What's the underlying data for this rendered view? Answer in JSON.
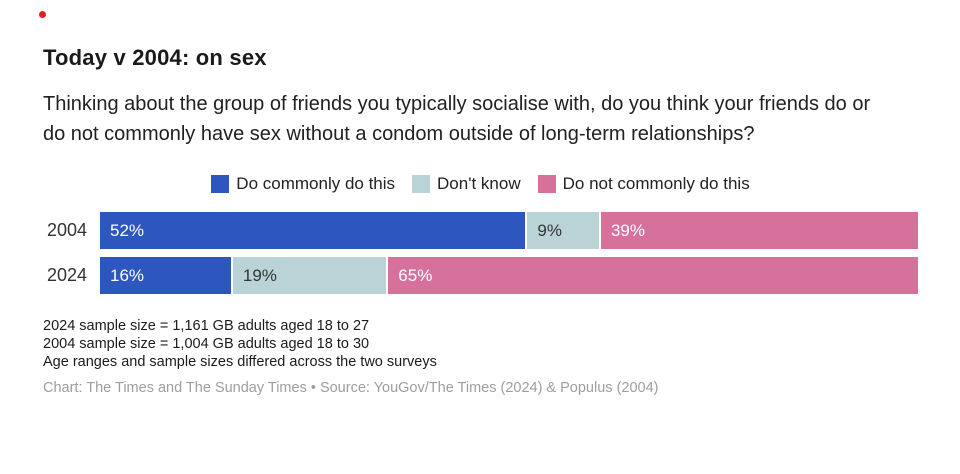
{
  "page": {
    "background": "#ffffff"
  },
  "indicator": {
    "name": "red-dot",
    "color": "#e41e26"
  },
  "header": {
    "title": "Today v 2004: on sex",
    "subtitle": "Thinking about the group of friends you typically socialise with, do you think your friends do or do not commonly have sex without a condom outside of long-term relationships?"
  },
  "chart_data": {
    "type": "bar",
    "orientation": "horizontal-stacked",
    "title": "Today v 2004: on sex",
    "categories": [
      "2004",
      "2024"
    ],
    "series": [
      {
        "name": "Do commonly do this",
        "color": "#2d56be",
        "label_color": "#ffffff",
        "values": [
          52,
          16
        ]
      },
      {
        "name": "Don't know",
        "color": "#b9d3d6",
        "label_color": "#333333",
        "values": [
          9,
          19
        ]
      },
      {
        "name": "Do not commonly do this",
        "color": "#d6719c",
        "label_color": "#ffffff",
        "values": [
          39,
          65
        ]
      }
    ],
    "value_suffix": "%",
    "xlim": [
      0,
      100
    ],
    "grid": false,
    "legend_position": "top-center"
  },
  "footnotes": [
    "2024 sample size = 1,161 GB adults aged 18 to 27",
    "2004 sample size = 1,004 GB adults aged 18 to 30",
    "Age ranges and sample sizes differed across the two surveys"
  ],
  "caption": "Chart: The Times and The Sunday Times • Source: YouGov/The Times (2024) & Populus (2004)"
}
